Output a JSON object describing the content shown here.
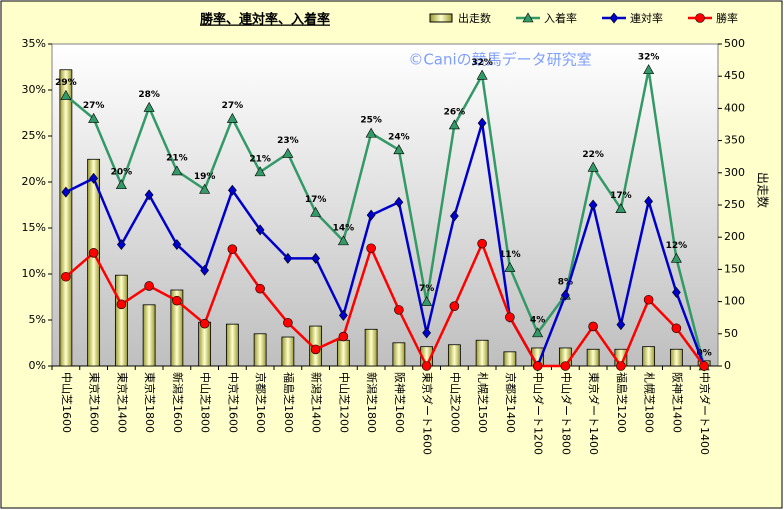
{
  "chart_data": {
    "type": "combo",
    "title": "勝率、連対率、入着率",
    "watermark": "©Caniの競馬データ研究室",
    "y2label": "出走数",
    "categories": [
      "中山芝1600",
      "東京芝1600",
      "東京芝1400",
      "東京芝1800",
      "新潟芝1600",
      "中山芝1800",
      "中京芝1600",
      "京都芝1600",
      "福島芝1800",
      "新潟芝1400",
      "中山芝1200",
      "新潟芝1800",
      "阪神芝1600",
      "東京ダート1600",
      "中山芝2000",
      "札幌芝1500",
      "京都芝1400",
      "中山ダート1200",
      "中山ダート1800",
      "東京ダート1400",
      "福島芝1200",
      "札幌芝1800",
      "阪神芝1400",
      "中京ダート1400"
    ],
    "ylim": [
      0,
      35
    ],
    "yticks": [
      {
        "value": 0,
        "label": "0%"
      },
      {
        "value": 5,
        "label": "5%"
      },
      {
        "value": 10,
        "label": "10%"
      },
      {
        "value": 15,
        "label": "15%"
      },
      {
        "value": 20,
        "label": "20%"
      },
      {
        "value": 25,
        "label": "25%"
      },
      {
        "value": 30,
        "label": "30%"
      },
      {
        "value": 35,
        "label": "35%"
      }
    ],
    "y2lim": [
      0,
      500
    ],
    "y2ticks": [
      0,
      50,
      100,
      150,
      200,
      250,
      300,
      350,
      400,
      450,
      500
    ],
    "legend": "top",
    "series": [
      {
        "name": "出走数",
        "type": "bar",
        "axis": "y2",
        "color": "#e8e89a",
        "values": [
          460,
          321,
          141,
          95,
          118,
          68,
          65,
          50,
          45,
          62,
          40,
          57,
          36,
          30,
          33,
          40,
          22,
          28,
          28,
          26,
          26,
          30,
          26,
          8
        ]
      },
      {
        "name": "入着率",
        "type": "line",
        "marker": "triangle",
        "color": "#339966",
        "values": [
          29.4,
          26.9,
          19.7,
          28.1,
          21.2,
          19.2,
          26.9,
          21.1,
          23.1,
          16.7,
          13.6,
          25.3,
          23.5,
          7.0,
          26.2,
          31.6,
          10.7,
          3.6,
          7.7,
          21.6,
          17.1,
          32.2,
          11.7,
          0
        ],
        "value_labels": [
          "29%",
          "27%",
          "20%",
          "28%",
          "21%",
          "19%",
          "27%",
          "21%",
          "23%",
          "17%",
          "14%",
          "25%",
          "24%",
          "7%",
          "26%",
          "32%",
          "11%",
          "4%",
          "8%",
          "22%",
          "17%",
          "32%",
          "12%",
          "0%"
        ]
      },
      {
        "name": "連対率",
        "type": "line",
        "marker": "diamond",
        "color": "#0000cc",
        "values": [
          18.9,
          20.4,
          13.2,
          18.6,
          13.2,
          10.4,
          19.1,
          14.8,
          11.7,
          11.7,
          5.5,
          16.4,
          17.8,
          3.6,
          16.3,
          26.4,
          5.3,
          0,
          7.7,
          17.5,
          4.5,
          17.9,
          8.0,
          0
        ]
      },
      {
        "name": "勝率",
        "type": "line",
        "marker": "circle",
        "color": "#ff0000",
        "values": [
          9.7,
          12.3,
          6.7,
          8.7,
          7.1,
          4.6,
          12.7,
          8.4,
          4.7,
          1.8,
          3.2,
          12.8,
          6.1,
          0,
          6.5,
          13.3,
          5.3,
          0,
          0,
          4.3,
          0,
          7.2,
          4.1,
          0
        ]
      }
    ]
  }
}
